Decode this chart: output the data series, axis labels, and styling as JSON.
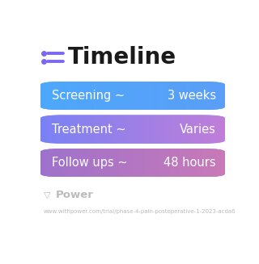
{
  "title": "Timeline",
  "background_color": "#ffffff",
  "rows": [
    {
      "label": "Screening ~",
      "value": "3 weeks",
      "gradient_left": "#4da8fb",
      "gradient_right": "#5b9ef8"
    },
    {
      "label": "Treatment ~",
      "value": "Varies",
      "gradient_left": "#7a82f5",
      "gradient_right": "#c07ed8"
    },
    {
      "label": "Follow ups ~",
      "value": "48 hours",
      "gradient_left": "#9e72cc",
      "gradient_right": "#c97ab8"
    }
  ],
  "text_color": "#ffffff",
  "font_size_label": 10.5,
  "font_size_value": 10.5,
  "title_fontsize": 20,
  "title_color": "#1a1a1a",
  "icon_color": "#7b68ee",
  "watermark_text": "Power",
  "watermark_color": "#bbbbbb",
  "url_text": "www.withpower.com/trial/phase-4-pain-postoperative-1-2023-acda6",
  "url_color": "#bbbbbb",
  "url_fontsize": 5.0,
  "watermark_fontsize": 9.5
}
